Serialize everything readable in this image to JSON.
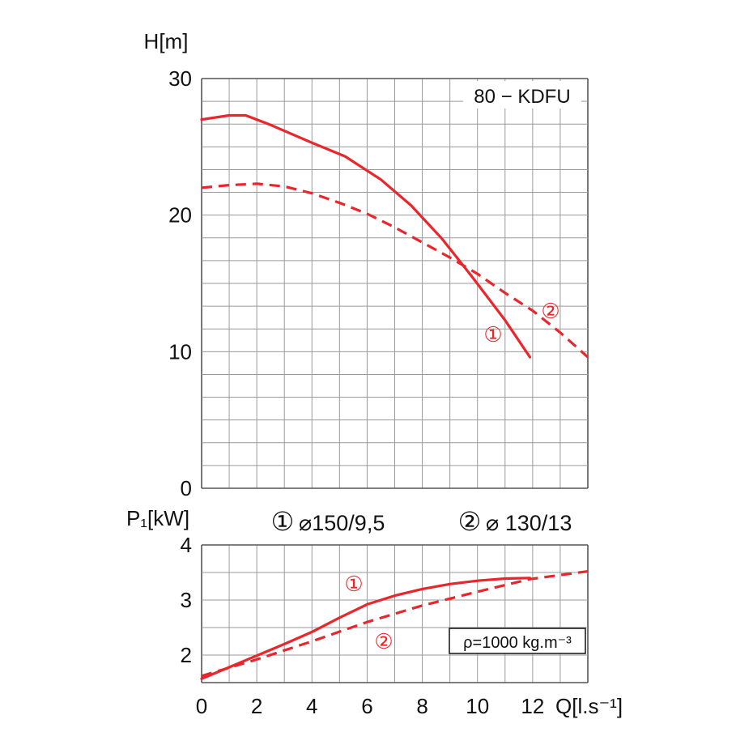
{
  "chart_data": [
    {
      "type": "line",
      "title": "80 − KDFU",
      "ylabel": "H[m]",
      "xlim": [
        0,
        14
      ],
      "ylim": [
        0,
        30
      ],
      "grid": true,
      "y_ticks": [
        "30",
        "20",
        "10",
        "0"
      ],
      "series": [
        {
          "name": "①",
          "style": "solid",
          "color": "#e8262c",
          "x": [
            0,
            1,
            1.6,
            2.5,
            4,
            5.2,
            6.5,
            7.6,
            8.7,
            9.8,
            11,
            11.9
          ],
          "y": [
            27,
            27.3,
            27.3,
            26.6,
            25.3,
            24.3,
            22.6,
            20.7,
            18.3,
            15.5,
            12.3,
            9.6
          ]
        },
        {
          "name": "②",
          "style": "dashed",
          "color": "#e8262c",
          "x": [
            0,
            1,
            2,
            3,
            4,
            5,
            6,
            7,
            8,
            9,
            10,
            11,
            12,
            13,
            14
          ],
          "y": [
            22,
            22.2,
            22.3,
            22.1,
            21.6,
            20.9,
            20.1,
            19.1,
            18,
            16.9,
            15.7,
            14.3,
            13,
            11.4,
            9.6
          ]
        }
      ]
    },
    {
      "type": "line",
      "ylabel": "P₁[kW]",
      "xlabel": "Q[l.s⁻¹]",
      "xlim": [
        0,
        14
      ],
      "ylim": [
        1.5,
        4
      ],
      "grid": true,
      "y_ticks": [
        "4",
        "3",
        "2"
      ],
      "x_ticks": [
        "0",
        "2",
        "4",
        "6",
        "8",
        "10",
        "12"
      ],
      "series": [
        {
          "name": "①",
          "style": "solid",
          "color": "#e8262c",
          "x": [
            0,
            1,
            2,
            3,
            4,
            5,
            6,
            7,
            8,
            9,
            10,
            11,
            11.9
          ],
          "y": [
            1.57,
            1.78,
            1.99,
            2.2,
            2.42,
            2.68,
            2.92,
            3.08,
            3.2,
            3.29,
            3.35,
            3.39,
            3.4
          ]
        },
        {
          "name": "②",
          "style": "dashed",
          "color": "#e8262c",
          "x": [
            0,
            2,
            4,
            6,
            8,
            10,
            11.9,
            14
          ],
          "y": [
            1.62,
            1.92,
            2.25,
            2.6,
            2.9,
            3.15,
            3.38,
            3.52
          ]
        }
      ],
      "annotation": "ρ=1000 kg.m⁻³"
    }
  ],
  "legend": {
    "item1": {
      "marker": "①",
      "text": "⌀150/9,5"
    },
    "item2": {
      "marker": "②",
      "text": "⌀ 130/13"
    }
  },
  "curve_markers": {
    "h1": "①",
    "h2": "②",
    "p1": "①",
    "p2": "②"
  },
  "colors": {
    "curve": "#e8262c",
    "grid": "#9a9a9a",
    "frame": "#555555"
  }
}
